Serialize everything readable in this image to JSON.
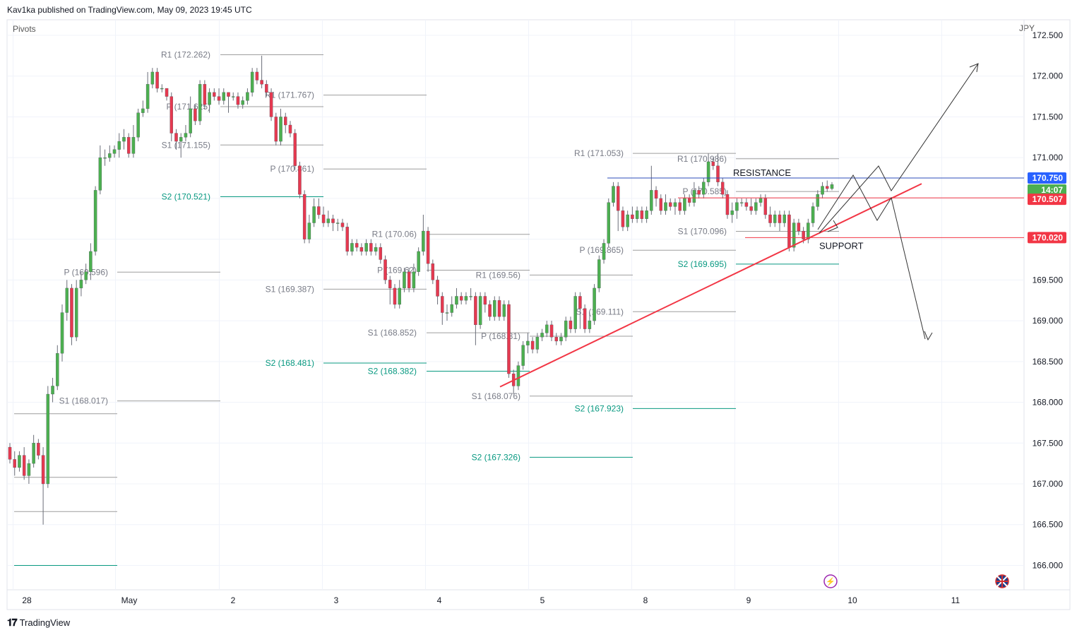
{
  "header": {
    "publisher": "Kav1ka published on TradingView.com, May 09, 2023 19:45 UTC"
  },
  "indicator": {
    "label": "Pivots"
  },
  "currency": "JPY",
  "brand": {
    "label": "TradingView"
  },
  "colors": {
    "bull": "#26a69a",
    "bull_candle": "#4caf50",
    "bear": "#ef5350",
    "bear_candle": "#e53950",
    "pivot": "#9e9e9e",
    "s2": "#089981",
    "resistance_line": "#2962ff",
    "trendline": "#f23645",
    "grid": "#f0f3fa"
  },
  "chart_data": {
    "type": "candlestick",
    "title": "",
    "y_axis": {
      "ticks": [
        166.0,
        166.5,
        167.0,
        167.5,
        168.0,
        168.5,
        169.0,
        169.5,
        170.0,
        170.5,
        171.0,
        171.5,
        172.0,
        172.5
      ],
      "ylim": [
        165.9,
        172.5
      ],
      "position": "right"
    },
    "x_axis": {
      "ticks": [
        "28",
        "May",
        "2",
        "3",
        "4",
        "5",
        "8",
        "9",
        "10",
        "11"
      ]
    },
    "grid": true,
    "price_labels": [
      {
        "value": "170.750",
        "style": "resistance"
      },
      {
        "value": "14:07",
        "style": "countdown"
      },
      {
        "value": "170.507",
        "style": "trend"
      },
      {
        "value": "170.020",
        "style": "support"
      }
    ],
    "annotations": [
      {
        "text": "RESISTANCE",
        "price": 170.75
      },
      {
        "text": "SUPPORT",
        "price": 170.02
      }
    ],
    "pivot_labels": [
      {
        "text": "R1 (172.262)",
        "price": 172.262,
        "kind": "pivot"
      },
      {
        "text": "R1 (171.767)",
        "price": 171.767,
        "kind": "pivot"
      },
      {
        "text": "P (171.625)",
        "price": 171.625,
        "kind": "pivot"
      },
      {
        "text": "S1 (171.155)",
        "price": 171.155,
        "kind": "pivot"
      },
      {
        "text": "P (170.861)",
        "price": 170.861,
        "kind": "pivot"
      },
      {
        "text": "S2 (170.521)",
        "price": 170.521,
        "kind": "s2"
      },
      {
        "text": "P (169.596)",
        "price": 169.596,
        "kind": "pivot"
      },
      {
        "text": "S1 (168.017)",
        "price": 168.017,
        "kind": "pivot"
      },
      {
        "text": "R1 (170.06)",
        "price": 170.06,
        "kind": "pivot"
      },
      {
        "text": "P (169.62)",
        "price": 169.62,
        "kind": "pivot"
      },
      {
        "text": "S1 (169.387)",
        "price": 169.387,
        "kind": "pivot"
      },
      {
        "text": "S2 (168.481)",
        "price": 168.481,
        "kind": "s2"
      },
      {
        "text": "S1 (168.852)",
        "price": 168.852,
        "kind": "pivot"
      },
      {
        "text": "S2 (168.382)",
        "price": 168.382,
        "kind": "s2"
      },
      {
        "text": "R1 (169.56)",
        "price": 169.56,
        "kind": "pivot"
      },
      {
        "text": "P (168.81)",
        "price": 168.81,
        "kind": "pivot"
      },
      {
        "text": "S1 (168.076)",
        "price": 168.076,
        "kind": "pivot"
      },
      {
        "text": "S2 (167.326)",
        "price": 167.326,
        "kind": "s2"
      },
      {
        "text": "R1 (171.053)",
        "price": 171.053,
        "kind": "pivot"
      },
      {
        "text": "P (169.865)",
        "price": 169.865,
        "kind": "pivot"
      },
      {
        "text": "S1 (169.111)",
        "price": 169.111,
        "kind": "pivot"
      },
      {
        "text": "S2 (167.923)",
        "price": 167.923,
        "kind": "s2"
      },
      {
        "text": "R1 (170.986)",
        "price": 170.986,
        "kind": "pivot"
      },
      {
        "text": "P (170.585)",
        "price": 170.585,
        "kind": "pivot"
      },
      {
        "text": "S1 (170.096)",
        "price": 170.096,
        "kind": "pivot"
      },
      {
        "text": "S2 (169.695)",
        "price": 169.695,
        "kind": "s2"
      }
    ],
    "candles": [
      [
        167.45,
        167.3,
        167.5,
        167.25
      ],
      [
        167.3,
        167.2,
        167.4,
        167.1
      ],
      [
        167.2,
        167.35,
        167.4,
        167.15
      ],
      [
        167.35,
        167.1,
        167.45,
        167.05
      ],
      [
        167.1,
        167.25,
        167.3,
        167.0
      ],
      [
        167.25,
        167.5,
        167.6,
        167.2
      ],
      [
        167.5,
        167.35,
        167.55,
        167.3
      ],
      [
        167.35,
        167.0,
        167.45,
        166.5
      ],
      [
        167.0,
        168.1,
        168.2,
        166.95
      ],
      [
        168.1,
        168.2,
        168.3,
        168.0
      ],
      [
        168.2,
        168.6,
        168.7,
        168.15
      ],
      [
        168.6,
        169.1,
        169.2,
        168.5
      ],
      [
        169.1,
        169.4,
        169.5,
        169.0
      ],
      [
        169.4,
        168.8,
        169.45,
        168.7
      ],
      [
        168.8,
        169.4,
        169.5,
        168.75
      ],
      [
        169.4,
        169.5,
        169.6,
        169.3
      ],
      [
        169.5,
        169.6,
        169.7,
        169.45
      ],
      [
        169.6,
        169.85,
        169.95,
        169.5
      ],
      [
        169.85,
        170.6,
        170.65,
        169.8
      ],
      [
        170.6,
        171.0,
        171.15,
        170.55
      ],
      [
        171.0,
        171.0,
        171.1,
        170.9
      ],
      [
        171.0,
        171.05,
        171.15,
        170.95
      ],
      [
        171.05,
        171.1,
        171.15,
        171.0
      ],
      [
        171.1,
        171.2,
        171.3,
        171.0
      ],
      [
        171.2,
        171.25,
        171.35,
        171.1
      ],
      [
        171.25,
        171.05,
        171.3,
        171.0
      ],
      [
        171.05,
        171.25,
        171.4,
        171.0
      ],
      [
        171.25,
        171.55,
        171.6,
        171.2
      ],
      [
        171.55,
        171.6,
        171.7,
        171.5
      ],
      [
        171.6,
        171.9,
        172.05,
        171.55
      ],
      [
        171.9,
        172.05,
        172.1,
        171.85
      ],
      [
        172.05,
        171.85,
        172.1,
        171.8
      ],
      [
        171.85,
        171.85,
        171.9,
        171.8
      ],
      [
        171.85,
        171.75,
        171.85,
        171.7
      ],
      [
        171.75,
        171.3,
        171.8,
        171.2
      ],
      [
        171.3,
        171.2,
        171.35,
        171.1
      ],
      [
        171.2,
        171.25,
        171.3,
        171.0
      ],
      [
        171.25,
        171.3,
        171.4,
        171.2
      ],
      [
        171.3,
        171.6,
        171.75,
        171.25
      ],
      [
        171.6,
        171.45,
        171.65,
        171.4
      ],
      [
        171.45,
        171.9,
        171.95,
        171.4
      ],
      [
        171.9,
        171.65,
        171.95,
        171.6
      ],
      [
        171.65,
        171.8,
        171.85,
        171.55
      ],
      [
        171.8,
        171.75,
        171.85,
        171.7
      ],
      [
        171.75,
        171.7,
        171.85,
        171.65
      ],
      [
        171.7,
        171.8,
        171.85,
        171.65
      ],
      [
        171.8,
        171.75,
        171.8,
        171.55
      ],
      [
        171.75,
        171.75,
        171.8,
        171.7
      ],
      [
        171.75,
        171.65,
        171.8,
        171.6
      ],
      [
        171.65,
        171.7,
        171.75,
        171.6
      ],
      [
        171.7,
        171.8,
        171.85,
        171.65
      ],
      [
        171.8,
        172.05,
        172.1,
        171.75
      ],
      [
        172.05,
        171.95,
        172.1,
        171.9
      ],
      [
        171.95,
        171.9,
        172.25,
        171.85
      ],
      [
        171.9,
        171.8,
        171.95,
        171.75
      ],
      [
        171.8,
        171.5,
        171.85,
        171.45
      ],
      [
        171.5,
        171.2,
        171.55,
        171.15
      ],
      [
        171.2,
        171.5,
        171.6,
        171.15
      ],
      [
        171.5,
        171.4,
        171.55,
        171.3
      ],
      [
        171.4,
        171.3,
        171.45,
        171.25
      ],
      [
        171.3,
        170.9,
        171.35,
        170.85
      ],
      [
        170.9,
        170.55,
        170.95,
        170.5
      ],
      [
        170.55,
        170.0,
        170.6,
        169.95
      ],
      [
        170.0,
        170.2,
        170.3,
        169.95
      ],
      [
        170.2,
        170.4,
        170.5,
        170.15
      ],
      [
        170.4,
        170.3,
        170.5,
        170.25
      ],
      [
        170.3,
        170.2,
        170.4,
        170.15
      ],
      [
        170.2,
        170.25,
        170.35,
        170.15
      ],
      [
        170.25,
        170.2,
        170.3,
        170.1
      ],
      [
        170.2,
        170.2,
        170.25,
        170.1
      ],
      [
        170.2,
        170.15,
        170.25,
        170.1
      ],
      [
        170.15,
        169.85,
        170.2,
        169.8
      ],
      [
        169.85,
        169.95,
        170.0,
        169.8
      ],
      [
        169.95,
        169.9,
        170.0,
        169.85
      ],
      [
        169.9,
        169.85,
        169.95,
        169.8
      ],
      [
        169.85,
        169.95,
        170.0,
        169.8
      ],
      [
        169.95,
        169.85,
        170.0,
        169.8
      ],
      [
        169.85,
        169.9,
        169.95,
        169.8
      ],
      [
        169.9,
        169.75,
        169.95,
        169.7
      ],
      [
        169.75,
        169.5,
        169.8,
        169.45
      ],
      [
        169.5,
        169.4,
        169.55,
        169.2
      ],
      [
        169.4,
        169.2,
        169.45,
        169.15
      ],
      [
        169.2,
        169.4,
        169.5,
        169.15
      ],
      [
        169.4,
        169.6,
        169.65,
        169.35
      ],
      [
        169.6,
        169.4,
        169.65,
        169.35
      ],
      [
        169.4,
        169.6,
        169.7,
        169.35
      ],
      [
        169.6,
        169.85,
        169.9,
        169.55
      ],
      [
        169.85,
        170.1,
        170.3,
        169.8
      ],
      [
        170.1,
        169.7,
        170.15,
        169.6
      ],
      [
        169.7,
        169.5,
        169.75,
        169.45
      ],
      [
        169.5,
        169.3,
        169.55,
        169.2
      ],
      [
        169.3,
        169.1,
        169.35,
        168.95
      ],
      [
        169.1,
        169.1,
        169.2,
        169.0
      ],
      [
        169.1,
        169.2,
        169.3,
        169.05
      ],
      [
        169.2,
        169.3,
        169.4,
        169.15
      ],
      [
        169.3,
        169.25,
        169.35,
        169.2
      ],
      [
        169.25,
        169.3,
        169.35,
        169.2
      ],
      [
        169.3,
        169.3,
        169.4,
        169.25
      ],
      [
        169.3,
        168.95,
        169.35,
        168.7
      ],
      [
        168.95,
        169.3,
        169.35,
        168.9
      ],
      [
        169.3,
        169.2,
        169.35,
        169.1
      ],
      [
        169.2,
        169.05,
        169.25,
        169.0
      ],
      [
        169.05,
        169.25,
        169.3,
        169.0
      ],
      [
        169.25,
        169.05,
        169.3,
        169.0
      ],
      [
        169.05,
        169.2,
        169.25,
        169.0
      ],
      [
        169.2,
        168.35,
        169.25,
        168.3
      ],
      [
        168.35,
        168.2,
        168.4,
        168.1
      ],
      [
        168.2,
        168.45,
        168.5,
        168.15
      ],
      [
        168.45,
        168.7,
        168.75,
        168.4
      ],
      [
        168.7,
        168.75,
        168.85,
        168.6
      ],
      [
        168.75,
        168.65,
        168.8,
        168.6
      ],
      [
        168.65,
        168.8,
        168.85,
        168.6
      ],
      [
        168.8,
        168.85,
        168.9,
        168.75
      ],
      [
        168.85,
        168.95,
        169.0,
        168.8
      ],
      [
        168.95,
        168.8,
        169.0,
        168.75
      ],
      [
        168.8,
        168.75,
        168.85,
        168.7
      ],
      [
        168.75,
        168.8,
        168.85,
        168.7
      ],
      [
        168.8,
        169.0,
        169.05,
        168.75
      ],
      [
        169.0,
        168.9,
        169.05,
        168.85
      ],
      [
        168.9,
        169.3,
        169.35,
        168.85
      ],
      [
        169.3,
        169.15,
        169.35,
        168.9
      ],
      [
        169.15,
        168.9,
        169.2,
        168.85
      ],
      [
        168.9,
        169.0,
        169.1,
        168.85
      ],
      [
        169.0,
        169.4,
        169.45,
        168.95
      ],
      [
        169.4,
        169.75,
        169.8,
        169.35
      ],
      [
        169.75,
        169.95,
        170.0,
        169.7
      ],
      [
        169.95,
        170.45,
        170.5,
        169.9
      ],
      [
        170.45,
        170.65,
        170.7,
        170.4
      ],
      [
        170.65,
        170.35,
        170.7,
        170.1
      ],
      [
        170.35,
        170.15,
        170.4,
        170.1
      ],
      [
        170.15,
        170.3,
        170.35,
        170.1
      ],
      [
        170.3,
        170.25,
        170.4,
        170.2
      ],
      [
        170.25,
        170.35,
        170.4,
        170.2
      ],
      [
        170.35,
        170.25,
        170.4,
        170.2
      ],
      [
        170.25,
        170.35,
        170.4,
        170.2
      ],
      [
        170.35,
        170.6,
        170.9,
        170.3
      ],
      [
        170.6,
        170.5,
        170.65,
        170.4
      ],
      [
        170.5,
        170.35,
        170.55,
        170.3
      ],
      [
        170.35,
        170.45,
        170.55,
        170.3
      ],
      [
        170.45,
        170.4,
        170.5,
        170.35
      ],
      [
        170.4,
        170.45,
        170.5,
        170.3
      ],
      [
        170.45,
        170.35,
        170.5,
        170.3
      ],
      [
        170.35,
        170.5,
        170.55,
        170.3
      ],
      [
        170.5,
        170.45,
        170.55,
        170.4
      ],
      [
        170.45,
        170.6,
        170.7,
        170.4
      ],
      [
        170.6,
        170.55,
        170.65,
        170.5
      ],
      [
        170.55,
        170.7,
        170.75,
        170.5
      ],
      [
        170.7,
        170.95,
        171.05,
        170.65
      ],
      [
        170.95,
        170.9,
        171.0,
        170.85
      ],
      [
        170.9,
        170.7,
        171.05,
        170.65
      ],
      [
        170.7,
        170.55,
        170.75,
        170.5
      ],
      [
        170.55,
        170.3,
        170.6,
        170.25
      ],
      [
        170.3,
        170.35,
        170.45,
        170.2
      ],
      [
        170.35,
        170.45,
        170.5,
        170.25
      ],
      [
        170.45,
        170.45,
        170.5,
        170.4
      ],
      [
        170.45,
        170.4,
        170.5,
        170.35
      ],
      [
        170.4,
        170.35,
        170.5,
        170.3
      ],
      [
        170.35,
        170.45,
        170.5,
        170.3
      ],
      [
        170.45,
        170.5,
        170.55,
        170.4
      ],
      [
        170.5,
        170.3,
        170.55,
        170.25
      ],
      [
        170.3,
        170.2,
        170.4,
        170.15
      ],
      [
        170.2,
        170.3,
        170.35,
        170.15
      ],
      [
        170.3,
        170.2,
        170.35,
        170.1
      ],
      [
        170.2,
        170.3,
        170.35,
        170.15
      ],
      [
        170.3,
        169.9,
        170.35,
        169.85
      ],
      [
        169.9,
        170.2,
        170.25,
        169.85
      ],
      [
        170.2,
        170.1,
        170.25,
        170.05
      ],
      [
        170.1,
        170.0,
        170.15,
        169.95
      ],
      [
        170.0,
        170.2,
        170.25,
        169.95
      ],
      [
        170.2,
        170.4,
        170.45,
        170.15
      ],
      [
        170.4,
        170.55,
        170.6,
        170.35
      ],
      [
        170.55,
        170.65,
        170.7,
        170.5
      ],
      [
        170.65,
        170.62,
        170.72,
        170.58
      ],
      [
        170.62,
        170.67,
        170.7,
        170.6
      ]
    ]
  }
}
